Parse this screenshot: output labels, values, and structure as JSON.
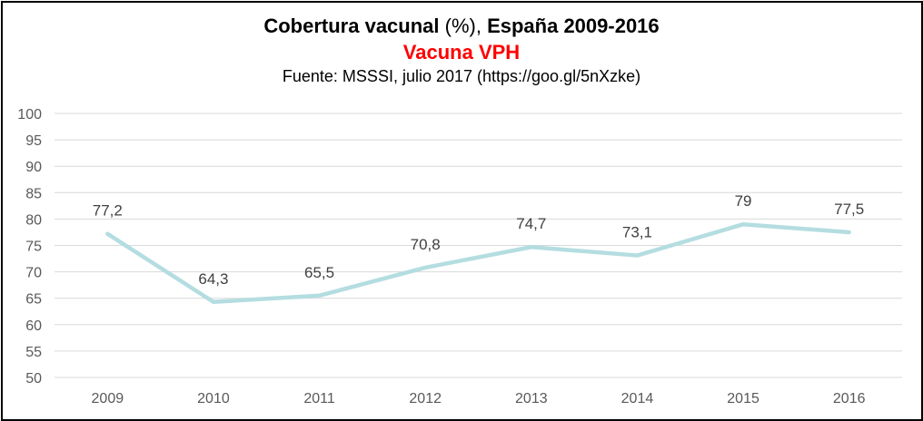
{
  "header": {
    "title_bold_1": "Cobertura vacunal",
    "title_normal": " (%), ",
    "title_bold_2": "España 2009-2016",
    "subtitle": "Vacuna VPH",
    "source": "Fuente: MSSSI, julio 2017 (https://goo.gl/5nXzke)"
  },
  "colors": {
    "subtitle": "#ff0000",
    "series_line": "#b4dde1",
    "gridline": "#d9d9d9",
    "axis_text": "#595959",
    "data_label_text": "#404040"
  },
  "chart_data": {
    "type": "line",
    "title": "Cobertura vacunal (%), España 2009-2016",
    "subtitle": "Vacuna VPH",
    "categories": [
      "2009",
      "2010",
      "2011",
      "2012",
      "2013",
      "2014",
      "2015",
      "2016"
    ],
    "values": [
      77.2,
      64.3,
      65.5,
      70.8,
      74.7,
      73.1,
      79,
      77.5
    ],
    "data_labels": [
      "77,2",
      "64,3",
      "65,5",
      "70,8",
      "74,7",
      "73,1",
      "79",
      "77,5"
    ],
    "ylim": [
      50,
      100
    ],
    "y_ticks": [
      "50",
      "55",
      "60",
      "65",
      "70",
      "75",
      "80",
      "85",
      "90",
      "95",
      "100"
    ],
    "grid": true,
    "legend": "none",
    "xlabel": "",
    "ylabel": ""
  }
}
